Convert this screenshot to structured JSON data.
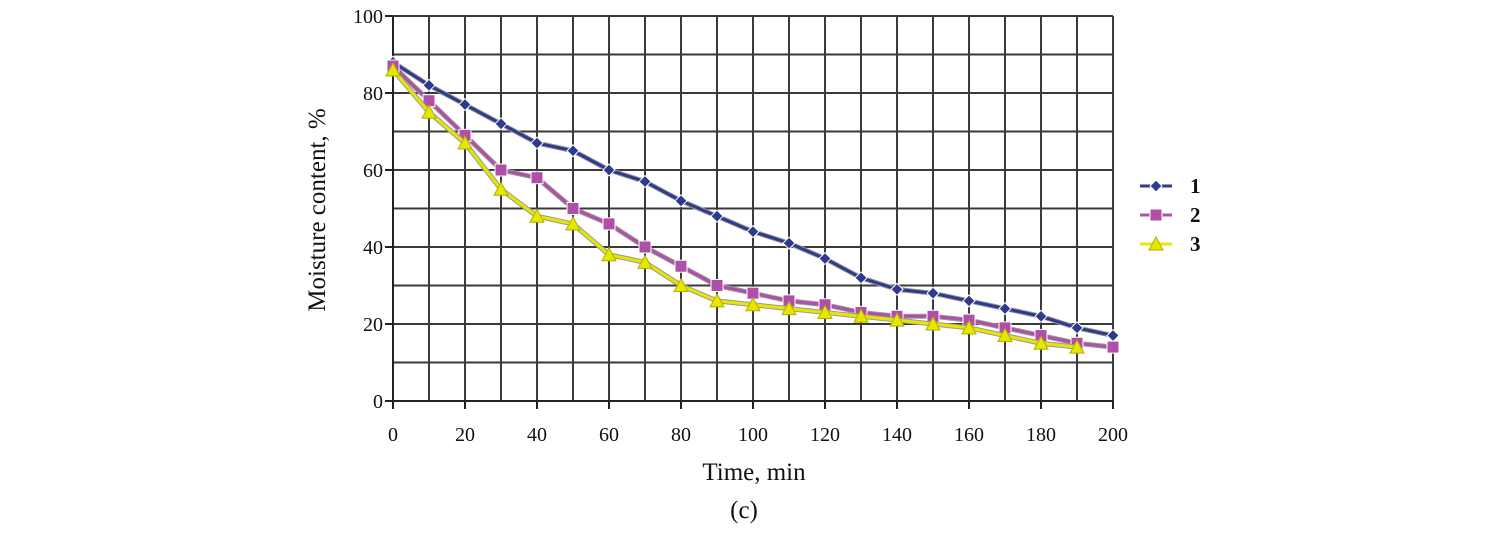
{
  "chart_data": {
    "type": "line",
    "xlabel": "Time, min",
    "ylabel": "Moisture content, %",
    "caption": "(c)",
    "xlim": [
      0,
      200
    ],
    "ylim": [
      0,
      100
    ],
    "x_ticks": [
      0,
      20,
      40,
      60,
      80,
      100,
      120,
      140,
      160,
      180,
      200
    ],
    "y_ticks": [
      0,
      20,
      40,
      60,
      80,
      100
    ],
    "grid": true,
    "legend_position": "right",
    "series": [
      {
        "name": "1",
        "color": "#2e3a8c",
        "marker": "diamond",
        "x": [
          0,
          10,
          20,
          30,
          40,
          50,
          60,
          70,
          80,
          90,
          100,
          110,
          120,
          130,
          140,
          150,
          160,
          170,
          180,
          190,
          200
        ],
        "y": [
          88,
          82,
          77,
          72,
          67,
          65,
          60,
          57,
          52,
          48,
          44,
          41,
          37,
          32,
          29,
          28,
          26,
          24,
          22,
          19,
          17
        ]
      },
      {
        "name": "2",
        "color": "#b04fa8",
        "marker": "square",
        "x": [
          0,
          10,
          20,
          30,
          40,
          50,
          60,
          70,
          80,
          90,
          100,
          110,
          120,
          130,
          140,
          150,
          160,
          170,
          180,
          190,
          200
        ],
        "y": [
          87,
          78,
          69,
          60,
          58,
          50,
          46,
          40,
          35,
          30,
          28,
          26,
          25,
          23,
          22,
          22,
          21,
          19,
          17,
          15,
          14
        ]
      },
      {
        "name": "3",
        "color": "#e6e600",
        "marker": "triangle",
        "x": [
          0,
          10,
          20,
          30,
          40,
          50,
          60,
          70,
          80,
          90,
          100,
          110,
          120,
          130,
          140,
          150,
          160,
          170,
          180,
          190
        ],
        "y": [
          86,
          75,
          67,
          55,
          48,
          46,
          38,
          36,
          30,
          26,
          25,
          24,
          23,
          22,
          21,
          20,
          19,
          17,
          15,
          14
        ]
      }
    ]
  }
}
